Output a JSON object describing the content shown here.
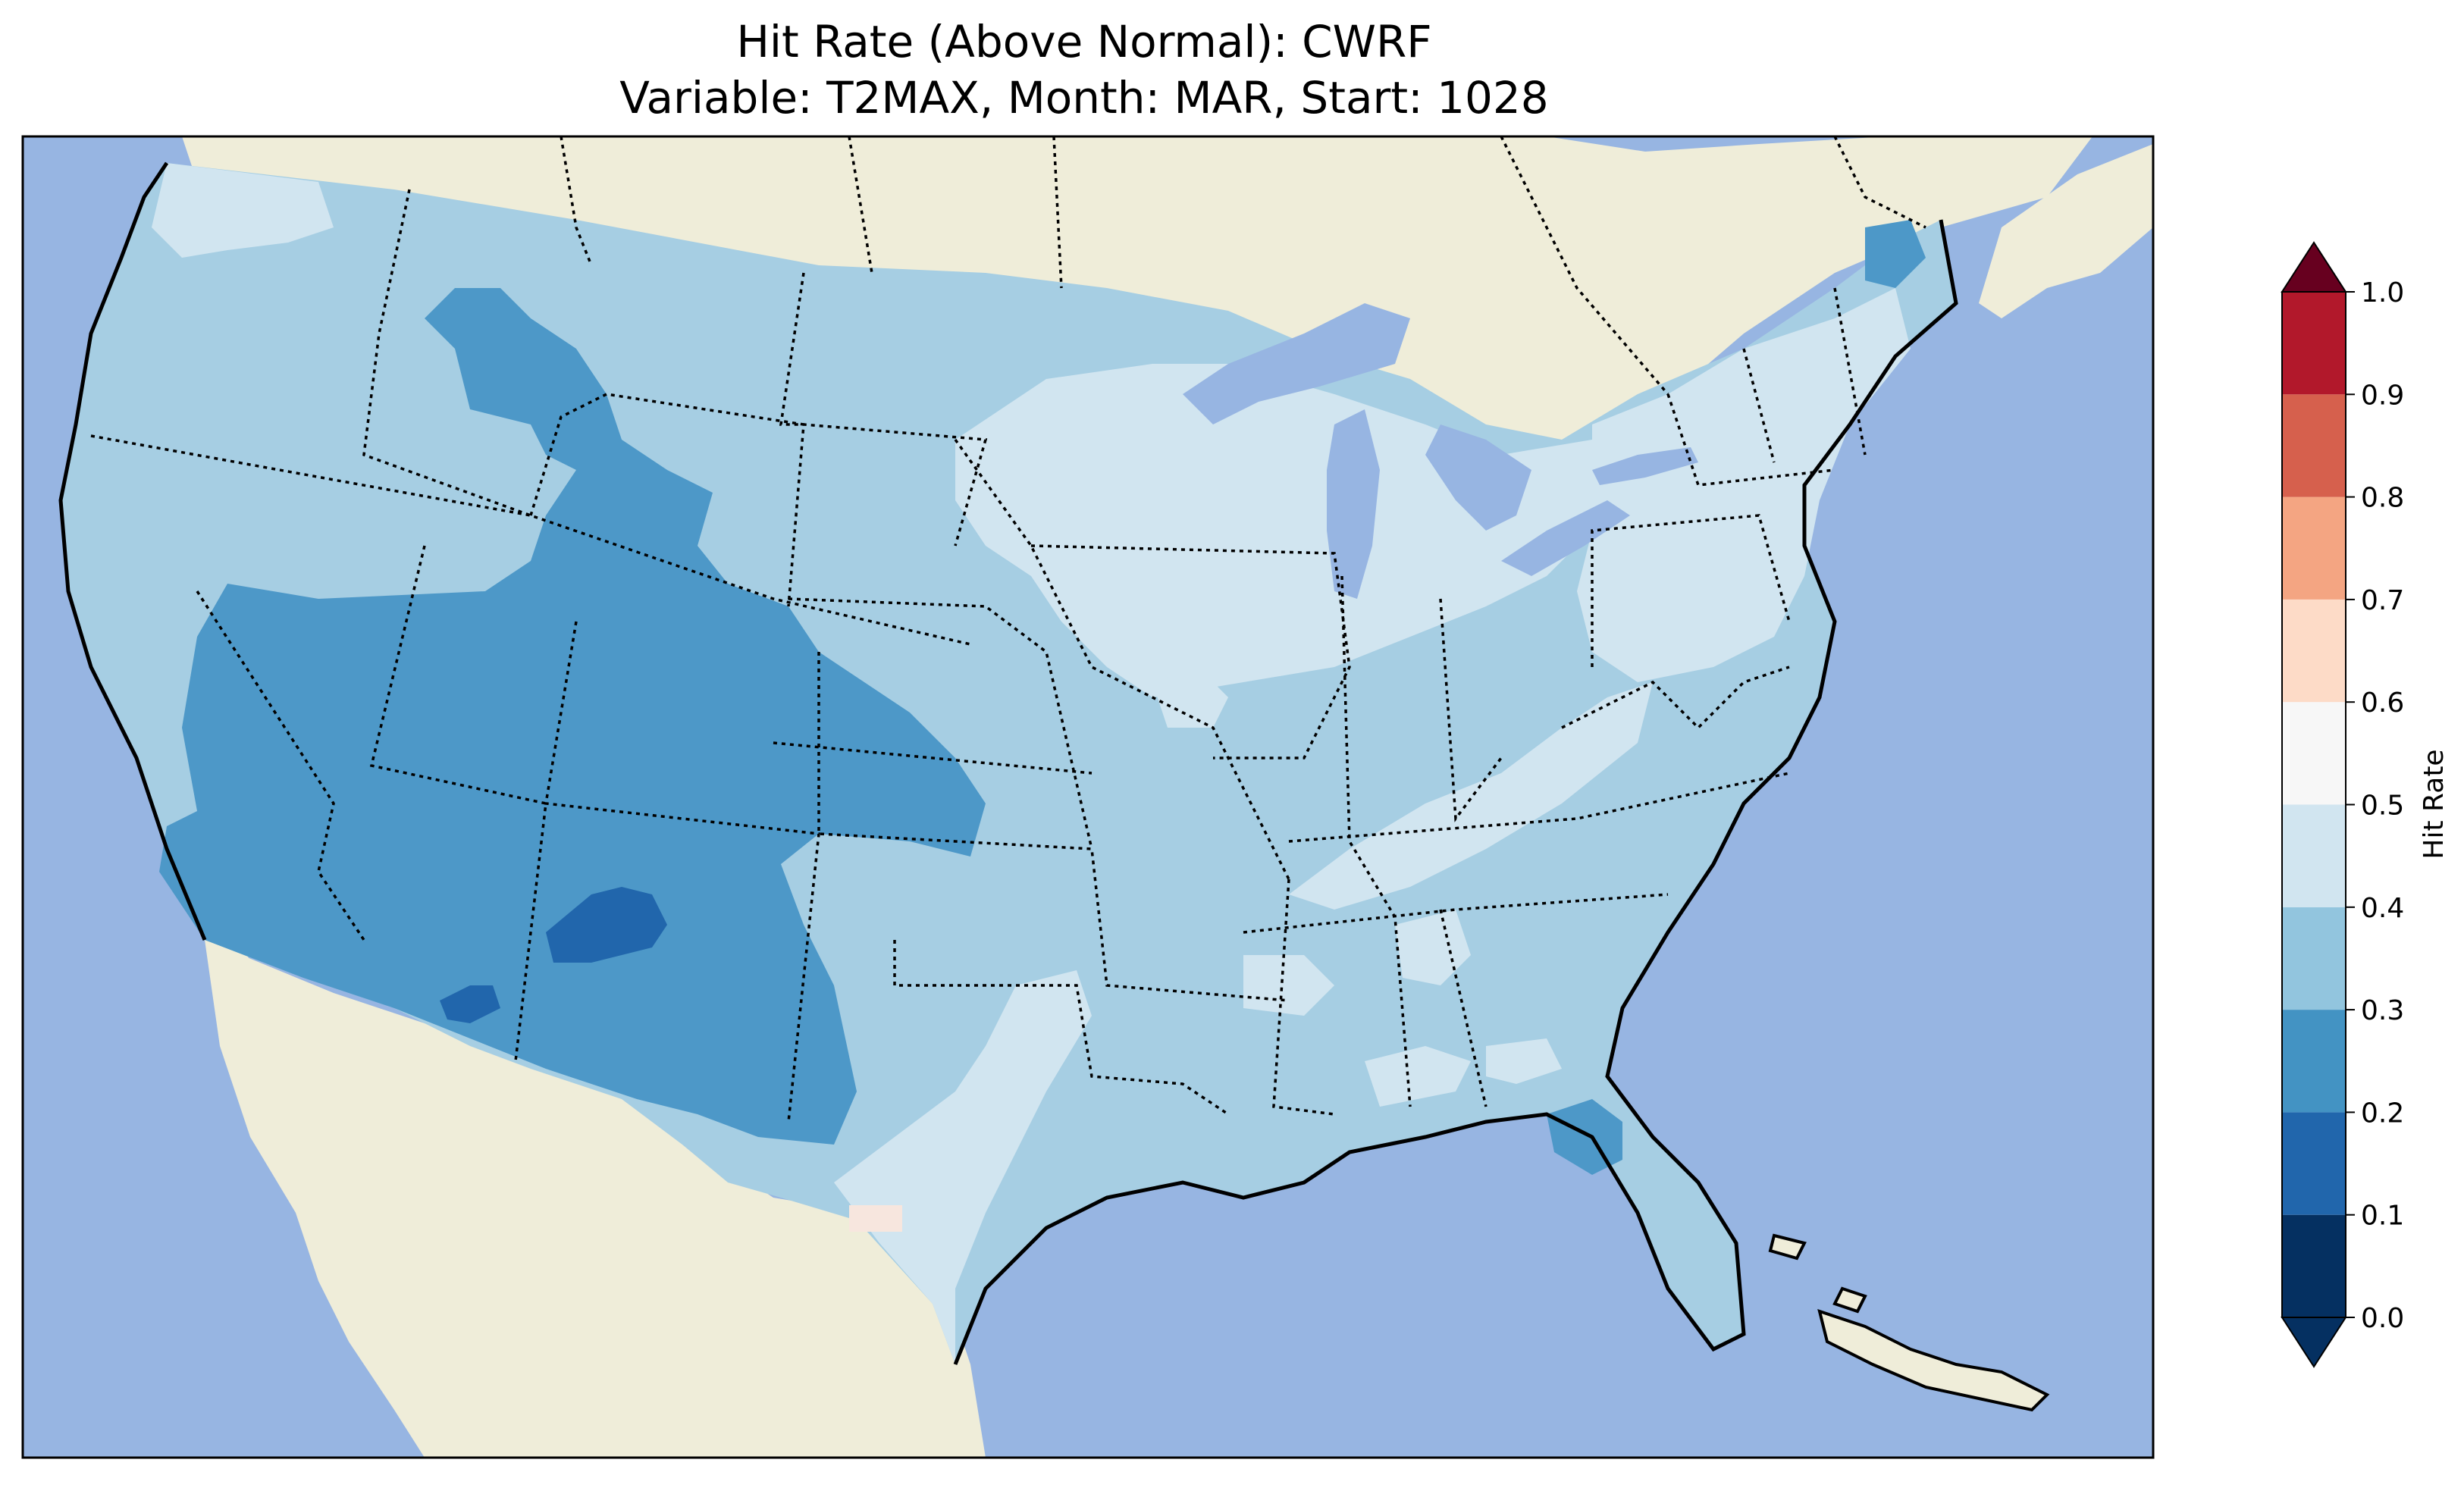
{
  "title": {
    "line1": "Hit Rate (Above Normal): CWRF",
    "line2": "Variable: T2MAX, Month: MAR, Start: 1028"
  },
  "colors": {
    "ocean": "#97b5e2",
    "land": "#efedd9",
    "lakes": "#97b5e2",
    "border": "#000000"
  },
  "colorbar": {
    "label": "Hit Rate",
    "ticks": [
      "0.0",
      "0.1",
      "0.2",
      "0.3",
      "0.4",
      "0.5",
      "0.6",
      "0.7",
      "0.8",
      "0.9",
      "1.0"
    ],
    "bins": [
      {
        "range": [
          0.0,
          0.1
        ],
        "color": "#053061"
      },
      {
        "range": [
          0.1,
          0.2
        ],
        "color": "#2166ac"
      },
      {
        "range": [
          0.2,
          0.3
        ],
        "color": "#4393c3"
      },
      {
        "range": [
          0.3,
          0.4
        ],
        "color": "#92c5de"
      },
      {
        "range": [
          0.4,
          0.5
        ],
        "color": "#d1e5f0"
      },
      {
        "range": [
          0.5,
          0.6
        ],
        "color": "#f7f7f7"
      },
      {
        "range": [
          0.6,
          0.7
        ],
        "color": "#fddbc7"
      },
      {
        "range": [
          0.7,
          0.8
        ],
        "color": "#f4a582"
      },
      {
        "range": [
          0.8,
          0.9
        ],
        "color": "#d6604d"
      },
      {
        "range": [
          0.9,
          1.0
        ],
        "color": "#b2182b"
      }
    ],
    "extend_low_color": "#053061",
    "extend_high_color": "#67001f"
  },
  "map_regions": [
    {
      "region": "Pacific Northwest coast",
      "bin": "0.3-0.4"
    },
    {
      "region": "Intermountain West / Great Basin",
      "bin": "0.2-0.3"
    },
    {
      "region": "New Mexico core",
      "bin": "0.1-0.2"
    },
    {
      "region": "Southern Arizona pocket",
      "bin": "0.1-0.2"
    },
    {
      "region": "Great Plains",
      "bin": "0.3-0.4"
    },
    {
      "region": "Upper Midwest / Great Lakes",
      "bin": "0.4-0.5"
    },
    {
      "region": "Ohio Valley / Kentucky band",
      "bin": "0.4-0.5"
    },
    {
      "region": "Southeast",
      "bin": "0.3-0.4"
    },
    {
      "region": "Florida panhandle",
      "bin": "0.2-0.3"
    },
    {
      "region": "Northern Maine",
      "bin": "0.2-0.3"
    },
    {
      "region": "Northeast / Mid-Atlantic",
      "bin": "0.4-0.5"
    },
    {
      "region": "South Texas",
      "bin": "0.4-0.5"
    },
    {
      "region": "South Texas pocket",
      "bin": "0.5-0.6"
    }
  ]
}
